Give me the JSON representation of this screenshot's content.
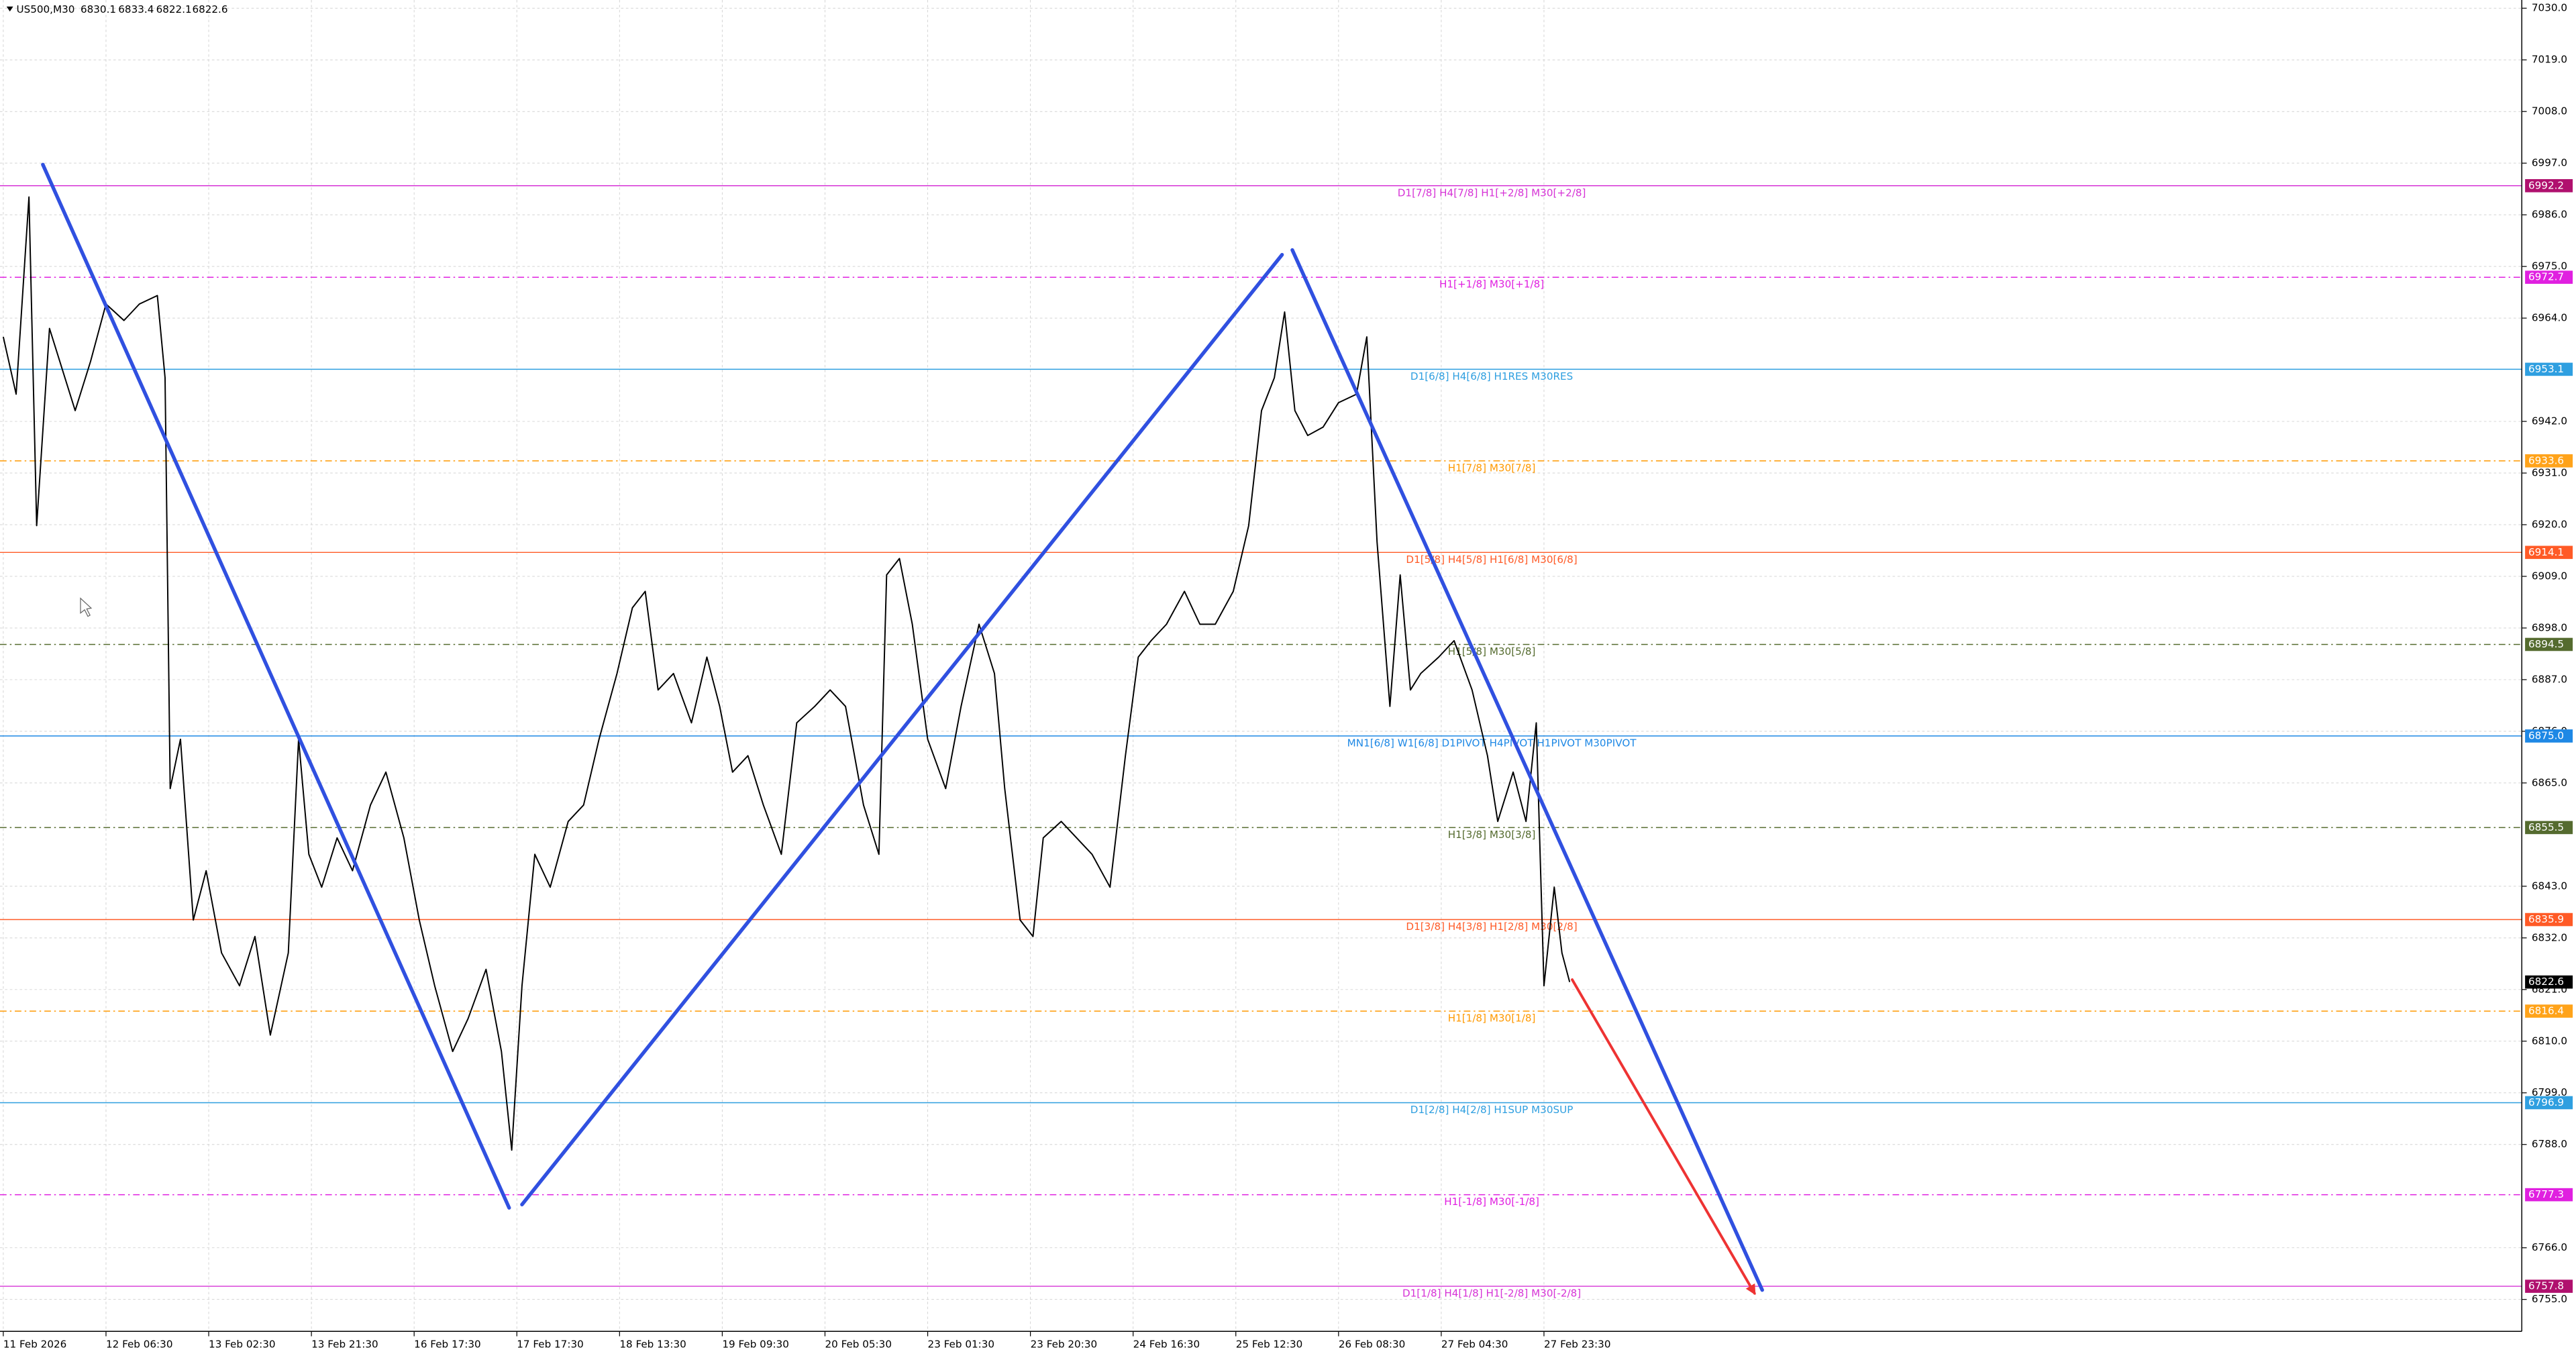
{
  "chart_data": {
    "type": "line",
    "symbol": "US500,M30",
    "ohlc": [
      6830.1,
      6833.4,
      6822.1,
      6822.6
    ],
    "grid": true,
    "line_color": "#000000",
    "xlim": [
      -1.28,
      980.8
    ],
    "ylim": [
      6748.2,
      7031.75
    ],
    "xticks": [
      {
        "value": 0,
        "label": "11 Feb 2026"
      },
      {
        "value": 40,
        "label": "12 Feb 06:30"
      },
      {
        "value": 80,
        "label": "13 Feb 02:30"
      },
      {
        "value": 120,
        "label": "13 Feb 21:30"
      },
      {
        "value": 160,
        "label": "16 Feb 17:30"
      },
      {
        "value": 200,
        "label": "17 Feb 17:30"
      },
      {
        "value": 240,
        "label": "18 Feb 13:30"
      },
      {
        "value": 280,
        "label": "19 Feb 09:30"
      },
      {
        "value": 320,
        "label": "20 Feb 05:30"
      },
      {
        "value": 360,
        "label": "23 Feb 01:30"
      },
      {
        "value": 400,
        "label": "23 Feb 20:30"
      },
      {
        "value": 440,
        "label": "24 Feb 16:30"
      },
      {
        "value": 480,
        "label": "25 Feb 12:30"
      },
      {
        "value": 520,
        "label": "26 Feb 08:30"
      },
      {
        "value": 560,
        "label": "27 Feb 04:30"
      },
      {
        "value": 600,
        "label": "27 Feb 23:30"
      }
    ],
    "yticks": [
      {
        "value": 7030,
        "label": "7030.0"
      },
      {
        "value": 7019,
        "label": "7019.0"
      },
      {
        "value": 7008,
        "label": "7008.0"
      },
      {
        "value": 6997,
        "label": "6997.0"
      },
      {
        "value": 6986,
        "label": "6986.0"
      },
      {
        "value": 6975,
        "label": "6975.0"
      },
      {
        "value": 6964,
        "label": "6964.0"
      },
      {
        "value": 6942,
        "label": "6942.0"
      },
      {
        "value": 6931,
        "label": "6931.0"
      },
      {
        "value": 6920,
        "label": "6920.0"
      },
      {
        "value": 6909,
        "label": "6909.0"
      },
      {
        "value": 6898,
        "label": "6898.0"
      },
      {
        "value": 6887,
        "label": "6887.0"
      },
      {
        "value": 6876,
        "label": "6876.0"
      },
      {
        "value": 6865,
        "label": "6865.0"
      },
      {
        "value": 6843,
        "label": "6843.0"
      },
      {
        "value": 6832,
        "label": "6832.0"
      },
      {
        "value": 6821,
        "label": "6821.0"
      },
      {
        "value": 6810,
        "label": "6810.0"
      },
      {
        "value": 6799,
        "label": "6799.0"
      },
      {
        "value": 6788,
        "label": "6788.0"
      },
      {
        "value": 6766,
        "label": "6766.0"
      },
      {
        "value": 6755,
        "label": "6755.0"
      }
    ],
    "x": [
      0,
      5,
      10,
      13,
      18,
      28,
      34,
      40,
      47,
      53,
      60,
      63,
      65,
      69,
      74,
      79,
      85,
      92,
      98,
      104,
      111,
      115,
      119,
      124,
      130,
      136,
      143,
      149,
      156,
      162,
      168,
      175,
      181,
      188,
      194,
      198,
      202,
      207,
      213,
      220,
      226,
      232,
      239,
      245,
      250,
      255,
      261,
      268,
      274,
      279,
      284,
      290,
      296,
      303,
      309,
      316,
      322,
      328,
      335,
      341,
      344,
      349,
      354,
      360,
      367,
      373,
      380,
      386,
      390,
      396,
      401,
      405,
      412,
      418,
      424,
      431,
      437,
      442,
      447,
      453,
      460,
      466,
      472,
      479,
      485,
      490,
      495,
      499,
      503,
      508,
      514,
      520,
      527,
      531,
      535,
      540,
      544,
      548,
      552,
      559,
      565,
      572,
      578,
      582,
      588,
      593,
      597,
      600,
      604,
      607,
      610
    ],
    "values": [
      6960,
      6947.8,
      6989.8,
      6919.8,
      6961.8,
      6944.3,
      6954.8,
      6967,
      6963.5,
      6967,
      6968.8,
      6951.3,
      6863.8,
      6874.3,
      6835.8,
      6846.3,
      6828.8,
      6821.8,
      6832.3,
      6811.3,
      6828.8,
      6874.3,
      6849.8,
      6842.8,
      6853.3,
      6846.3,
      6860.3,
      6867.3,
      6853.3,
      6835.8,
      6821.8,
      6807.8,
      6814.8,
      6825.3,
      6807.8,
      6786.8,
      6821.8,
      6849.8,
      6842.8,
      6856.8,
      6860.3,
      6874.3,
      6888.3,
      6902.3,
      6905.8,
      6884.8,
      6888.3,
      6877.8,
      6891.8,
      6881.3,
      6867.3,
      6870.8,
      6860.3,
      6849.8,
      6877.8,
      6881.3,
      6884.8,
      6881.3,
      6860.3,
      6849.8,
      6909.3,
      6912.8,
      6898.8,
      6874.3,
      6863.8,
      6881.3,
      6898.8,
      6888.3,
      6863.8,
      6835.8,
      6832.3,
      6853.3,
      6856.8,
      6853.3,
      6849.8,
      6842.8,
      6870.8,
      6891.8,
      6895.3,
      6898.8,
      6905.8,
      6898.8,
      6898.8,
      6905.8,
      6919.8,
      6944.3,
      6951.3,
      6965.3,
      6944.3,
      6939,
      6940.8,
      6946,
      6947.8,
      6960,
      6916.3,
      6881.3,
      6909.3,
      6884.8,
      6888.3,
      6891.8,
      6895.3,
      6884.8,
      6870.8,
      6856.8,
      6867.3,
      6856.8,
      6877.8,
      6821.8,
      6842.8,
      6828.8,
      6822.6
    ],
    "last_price": 6822.6,
    "last_price_color": "#000000",
    "levels": [
      {
        "price": 6992.2,
        "text": "D1[7/8] H4[7/8] H1[+2/8] M30[+2/8]",
        "color": "#d633d6",
        "box": "#b0106e",
        "style": "solid"
      },
      {
        "price": 6972.7,
        "text": "H1[+1/8] M30[+1/8]",
        "color": "#e020e0",
        "box": "#e020e0",
        "style": "dashdot"
      },
      {
        "price": 6953.1,
        "text": "D1[6/8] H4[6/8] H1RES M30RES",
        "color": "#2f9fe0",
        "box": "#2f9fe0",
        "style": "solid"
      },
      {
        "price": 6933.6,
        "text": "H1[7/8] M30[7/8]",
        "color": "#ff9900",
        "box": "#ffa31a",
        "style": "dashdot"
      },
      {
        "price": 6914.1,
        "text": "D1[5/8] H4[5/8] H1[6/8] M30[6/8]",
        "color": "#ff5a26",
        "box": "#ff5a26",
        "style": "solid"
      },
      {
        "price": 6894.5,
        "text": "H1[5/8] M30[5/8]",
        "color": "#556b2f",
        "box": "#556b2f",
        "style": "dashdot"
      },
      {
        "price": {
          "value": 6875,
          "label": "6875.0"
        },
        "text": "MN1[6/8] W1[6/8] D1PIVOT H4PIVOT H1PIVOT M30PIVOT",
        "color": "#1e88e5",
        "box": "#1e88e5",
        "style": "solid"
      },
      {
        "price": 6855.5,
        "text": "H1[3/8] M30[3/8]",
        "color": "#556b2f",
        "box": "#556b2f",
        "style": "dashdot"
      },
      {
        "price": 6835.9,
        "text": "D1[3/8] H4[3/8] H1[2/8] M30[2/8]",
        "color": "#ff5a26",
        "box": "#ff5a26",
        "style": "solid"
      },
      {
        "price": 6816.4,
        "text": "H1[1/8] M30[1/8]",
        "color": "#ff9900",
        "box": "#ffa31a",
        "style": "dashdot"
      },
      {
        "price": 6796.9,
        "text": "D1[2/8] H4[2/8] H1SUP M30SUP",
        "color": "#2f9fe0",
        "box": "#2f9fe0",
        "style": "solid"
      },
      {
        "price": 6777.3,
        "text": "H1[-1/8] M30[-1/8]",
        "color": "#e020e0",
        "box": "#e020e0",
        "style": "dashdot"
      },
      {
        "price": 6757.8,
        "text": "D1[1/8] H4[1/8] H1[-2/8] M30[-2/8]",
        "color": "#d633d6",
        "box": "#b0106e",
        "style": "solid"
      }
    ],
    "trendlines": [
      {
        "color": "#3050e0",
        "points": [
          [
            15.4,
            6996.7
          ],
          [
            197,
            6774.5
          ]
        ]
      },
      {
        "color": "#3050e0",
        "points": [
          [
            202,
            6775.2
          ],
          [
            498,
            6977.5
          ]
        ]
      },
      {
        "color": "#3050e0",
        "points": [
          [
            502,
            6978.5
          ],
          [
            685,
            6757.0
          ]
        ]
      },
      {
        "color": "#ee3333",
        "arrow": true,
        "points": [
          [
            611,
            6823.1
          ],
          [
            682,
            6756.3
          ]
        ]
      }
    ]
  }
}
